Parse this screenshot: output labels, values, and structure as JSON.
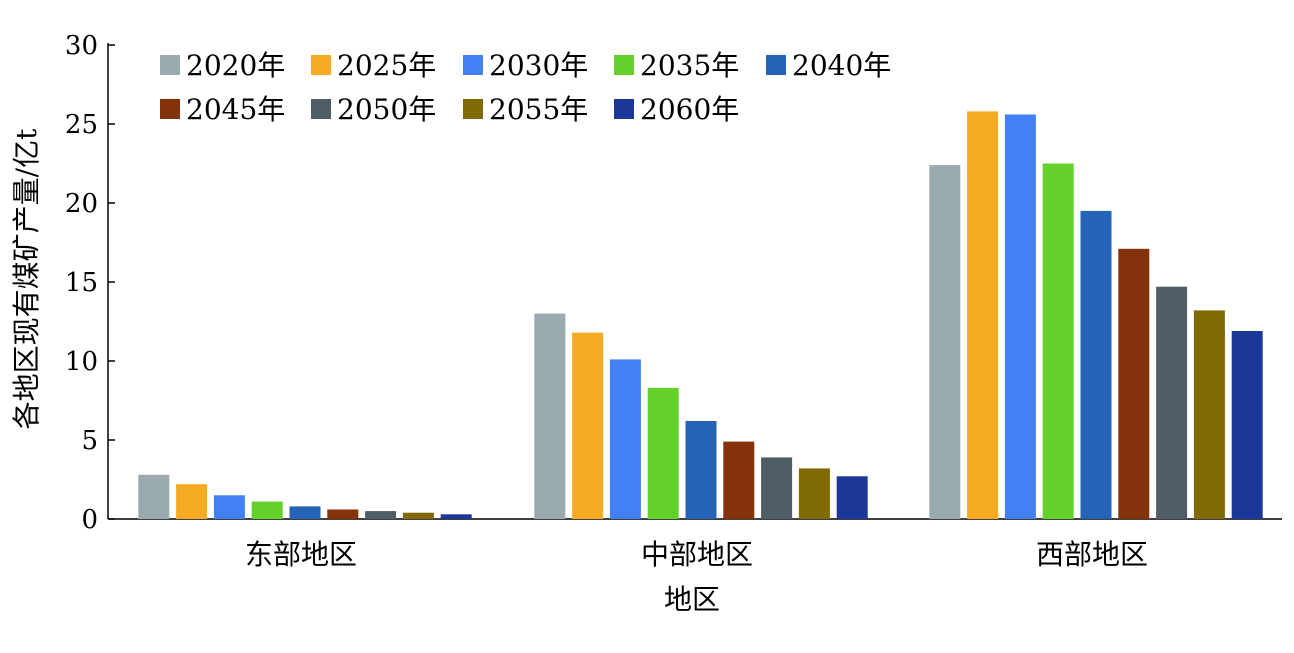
{
  "chart_data": {
    "type": "bar",
    "title": "",
    "xlabel": "地区",
    "ylabel": "各地区现有煤矿产量/亿t",
    "ylim": [
      0,
      30
    ],
    "yticks": [
      0,
      5,
      10,
      15,
      20,
      25,
      30
    ],
    "grid": false,
    "legend_position": "top-left",
    "categories": [
      "东部地区",
      "中部地区",
      "西部地区"
    ],
    "series": [
      {
        "name": "2020年",
        "color": "#9aabb0",
        "values": [
          2.8,
          13.0,
          22.4
        ]
      },
      {
        "name": "2025年",
        "color": "#f4ab23",
        "values": [
          2.2,
          11.8,
          25.8
        ]
      },
      {
        "name": "2030年",
        "color": "#4181f5",
        "values": [
          1.5,
          10.1,
          25.6
        ]
      },
      {
        "name": "2035年",
        "color": "#63d12a",
        "values": [
          1.1,
          8.3,
          22.5
        ]
      },
      {
        "name": "2040年",
        "color": "#2463b6",
        "values": [
          0.8,
          6.2,
          19.5
        ]
      },
      {
        "name": "2045年",
        "color": "#833209",
        "values": [
          0.6,
          4.9,
          17.1
        ]
      },
      {
        "name": "2050年",
        "color": "#4f5d66",
        "values": [
          0.5,
          3.9,
          14.7
        ]
      },
      {
        "name": "2055年",
        "color": "#816a06",
        "values": [
          0.4,
          3.2,
          13.2
        ]
      },
      {
        "name": "2060年",
        "color": "#1b3797",
        "values": [
          0.3,
          2.7,
          11.9
        ]
      }
    ]
  }
}
